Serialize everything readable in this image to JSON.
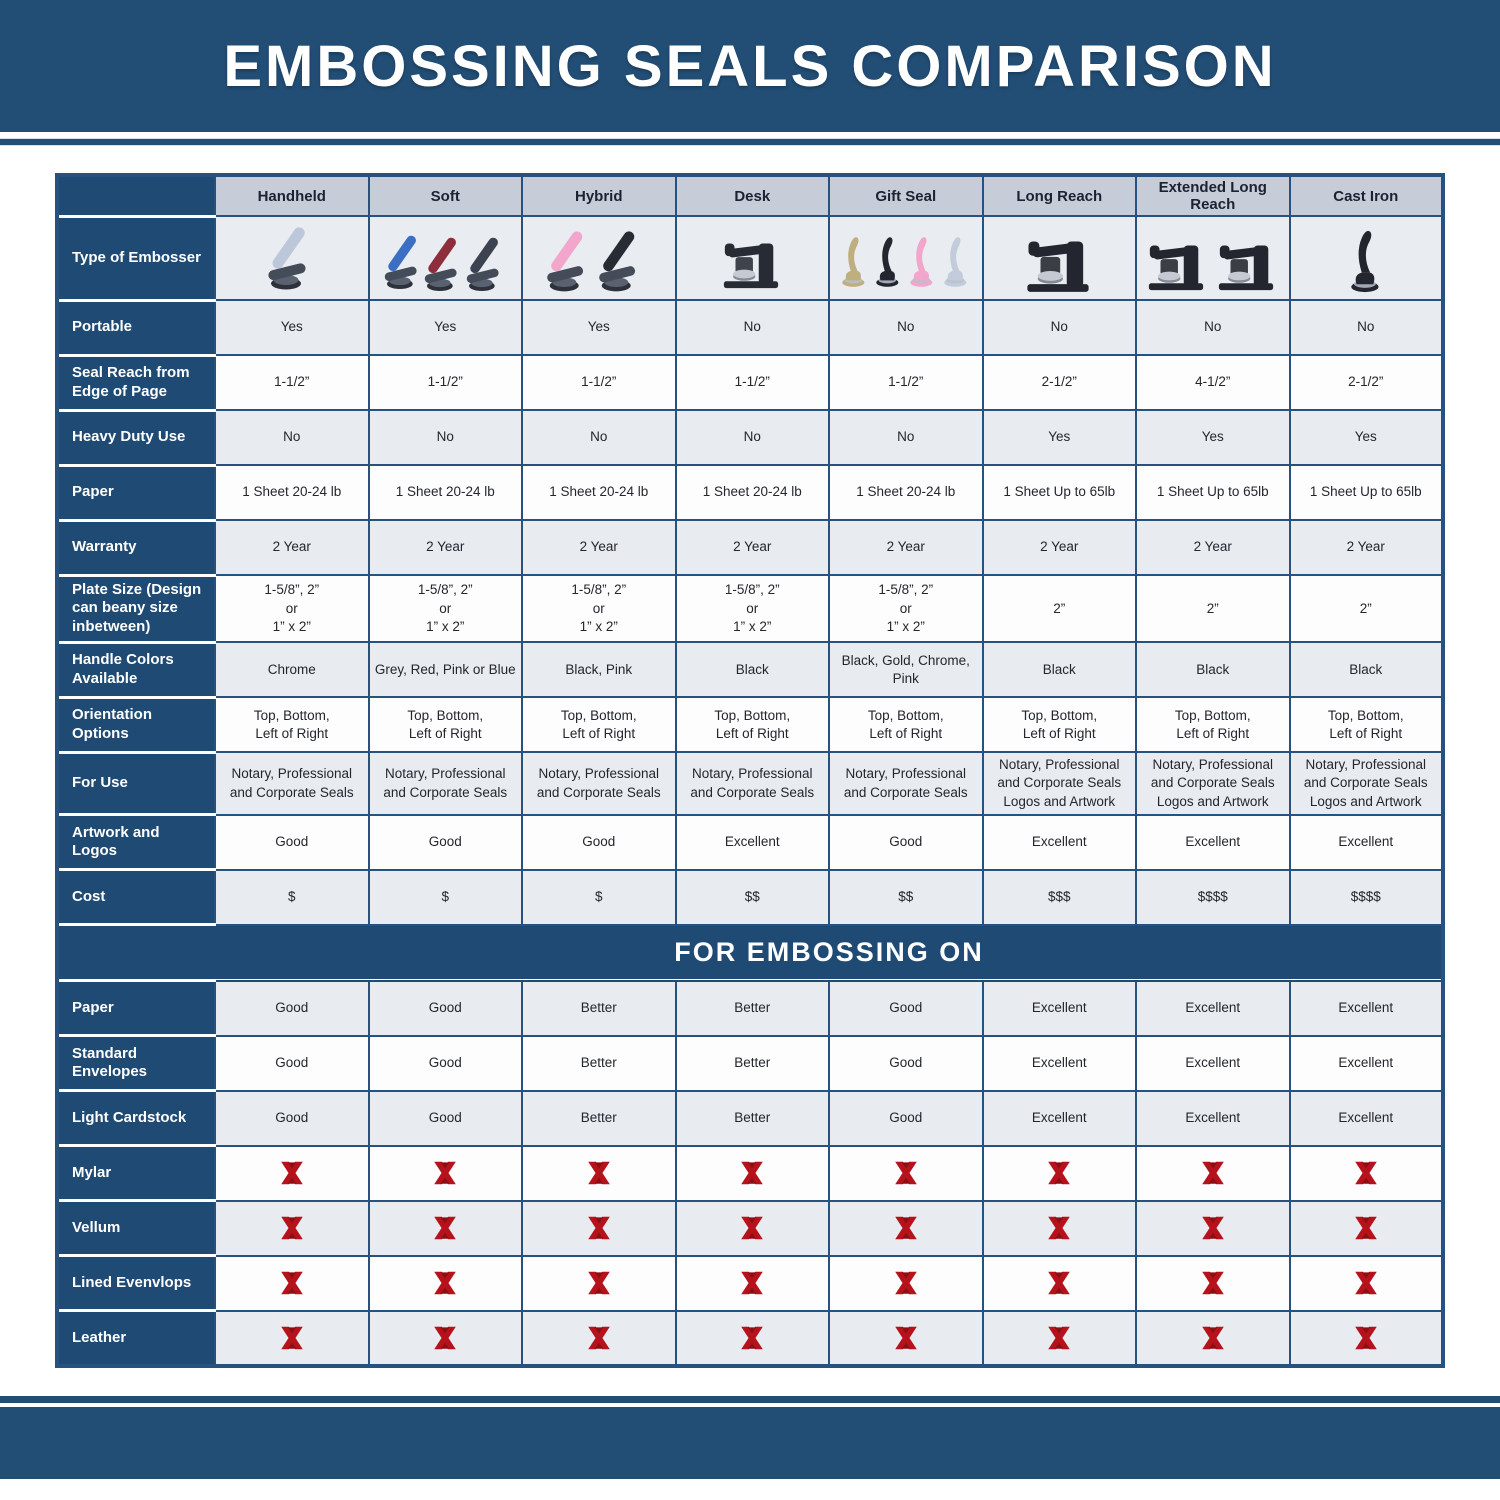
{
  "page": {
    "title": "EMBOSSING SEALS COMPARISON"
  },
  "banner": "FOR EMBOSSING ON",
  "colors": {
    "navy_band": "#224e76",
    "navy_cell": "#1e4a74",
    "grid_border": "#27527f",
    "column_header_bg": "#c6cdd8",
    "row_gray": "#e8ebf0",
    "row_white": "#fdfdfe",
    "x_mark_red": "#b5121b"
  },
  "table": {
    "columns": [
      "Handheld",
      "Soft",
      "Hybrid",
      "Desk",
      "Gift Seal",
      "Long Reach",
      "Extended Long Reach",
      "Cast Iron"
    ],
    "embosser_row": {
      "label": "Type of Embosser",
      "images": [
        "handheld-embosser-image",
        "soft-embosser-image",
        "hybrid-embosser-image",
        "desk-embosser-image",
        "gift-seal-embosser-image",
        "long-reach-embosser-image",
        "extended-long-reach-embosser-image",
        "cast-iron-embosser-image"
      ]
    },
    "spec_rows": [
      {
        "label": "Portable",
        "shade": "gray",
        "values": [
          "Yes",
          "Yes",
          "Yes",
          "No",
          "No",
          "No",
          "No",
          "No"
        ]
      },
      {
        "label": "Seal Reach from Edge of Page",
        "shade": "white",
        "values": [
          "1-1/2”",
          "1-1/2”",
          "1-1/2”",
          "1-1/2”",
          "1-1/2”",
          "2-1/2”",
          "4-1/2”",
          "2-1/2”"
        ]
      },
      {
        "label": "Heavy Duty Use",
        "shade": "gray",
        "values": [
          "No",
          "No",
          "No",
          "No",
          "No",
          "Yes",
          "Yes",
          "Yes"
        ]
      },
      {
        "label": "Paper",
        "shade": "white",
        "values": [
          "1 Sheet 20-24 lb",
          "1 Sheet 20-24 lb",
          "1 Sheet 20-24 lb",
          "1 Sheet 20-24 lb",
          "1 Sheet 20-24 lb",
          "1 Sheet Up to 65lb",
          "1 Sheet Up to 65lb",
          "1 Sheet Up to 65lb"
        ]
      },
      {
        "label": "Warranty",
        "shade": "gray",
        "values": [
          "2 Year",
          "2 Year",
          "2 Year",
          "2 Year",
          "2 Year",
          "2 Year",
          "2 Year",
          "2 Year"
        ]
      },
      {
        "label": "Plate Size (Design can beany size inbetween)",
        "shade": "white",
        "values": [
          "1-5/8”, 2”\nor\n1” x 2”",
          "1-5/8”, 2”\nor\n1” x 2”",
          "1-5/8”, 2”\nor\n1” x 2”",
          "1-5/8”, 2”\nor\n1” x 2”",
          "1-5/8”, 2”\nor\n1” x 2”",
          "2”",
          "2”",
          "2”"
        ]
      },
      {
        "label": "Handle Colors Available",
        "shade": "gray",
        "values": [
          "Chrome",
          "Grey, Red, Pink or Blue",
          "Black, Pink",
          "Black",
          "Black, Gold, Chrome, Pink",
          "Black",
          "Black",
          "Black"
        ]
      },
      {
        "label": "Orientation Options",
        "shade": "white",
        "values": [
          "Top, Bottom,\nLeft of Right",
          "Top, Bottom,\nLeft of Right",
          "Top, Bottom,\nLeft of Right",
          "Top, Bottom,\nLeft of Right",
          "Top, Bottom,\nLeft of Right",
          "Top, Bottom,\nLeft of Right",
          "Top, Bottom,\nLeft of Right",
          "Top, Bottom,\nLeft of Right"
        ]
      },
      {
        "label": "For Use",
        "shade": "gray",
        "values": [
          "Notary, Professional\nand Corporate Seals",
          "Notary, Professional\nand Corporate Seals",
          "Notary, Professional\nand Corporate Seals",
          "Notary, Professional\nand Corporate Seals",
          "Notary, Professional\nand Corporate Seals",
          "Notary, Professional\nand Corporate Seals\nLogos and Artwork",
          "Notary, Professional\nand Corporate Seals\nLogos and Artwork",
          "Notary, Professional\nand Corporate Seals\nLogos and Artwork"
        ]
      },
      {
        "label": "Artwork and Logos",
        "shade": "white",
        "values": [
          "Good",
          "Good",
          "Good",
          "Excellent",
          "Good",
          "Excellent",
          "Excellent",
          "Excellent"
        ]
      },
      {
        "label": "Cost",
        "shade": "gray",
        "values": [
          "$",
          "$",
          "$",
          "$$",
          "$$",
          "$$$",
          "$$$$",
          "$$$$"
        ]
      }
    ],
    "embossing_rows": [
      {
        "label": "Paper",
        "shade": "gray",
        "values": [
          "Good",
          "Good",
          "Better",
          "Better",
          "Good",
          "Excellent",
          "Excellent",
          "Excellent"
        ]
      },
      {
        "label": "Standard Envelopes",
        "shade": "white",
        "values": [
          "Good",
          "Good",
          "Better",
          "Better",
          "Good",
          "Excellent",
          "Excellent",
          "Excellent"
        ]
      },
      {
        "label": "Light Cardstock",
        "shade": "gray",
        "values": [
          "Good",
          "Good",
          "Better",
          "Better",
          "Good",
          "Excellent",
          "Excellent",
          "Excellent"
        ]
      },
      {
        "label": "Mylar",
        "shade": "white",
        "values": [
          "x-icon",
          "x-icon",
          "x-icon",
          "x-icon",
          "x-icon",
          "x-icon",
          "x-icon",
          "x-icon"
        ]
      },
      {
        "label": "Vellum",
        "shade": "gray",
        "values": [
          "x-icon",
          "x-icon",
          "x-icon",
          "x-icon",
          "x-icon",
          "x-icon",
          "x-icon",
          "x-icon"
        ]
      },
      {
        "label": "Lined Evenvlops",
        "shade": "white",
        "values": [
          "x-icon",
          "x-icon",
          "x-icon",
          "x-icon",
          "x-icon",
          "x-icon",
          "x-icon",
          "x-icon"
        ]
      },
      {
        "label": "Leather",
        "shade": "gray",
        "values": [
          "x-icon",
          "x-icon",
          "x-icon",
          "x-icon",
          "x-icon",
          "x-icon",
          "x-icon",
          "x-icon"
        ]
      }
    ]
  }
}
